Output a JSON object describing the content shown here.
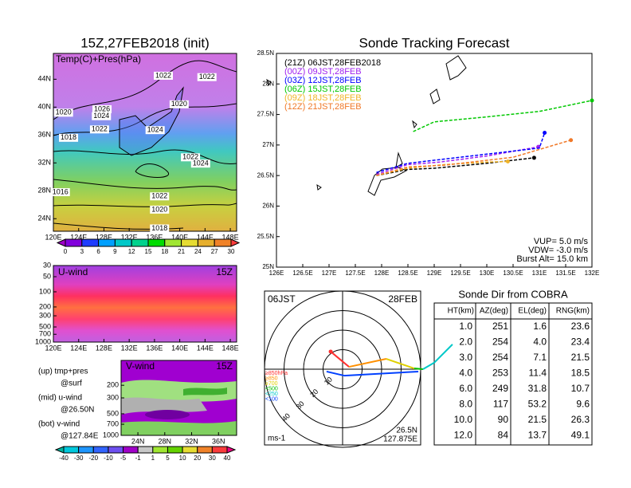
{
  "chart_data": [
    {
      "type": "contour",
      "title": "15Z,27FEB2018 (init)",
      "subtitle": "Temp(C)+Pres(hPa)",
      "xlim": [
        120,
        149
      ],
      "ylim": [
        22.2,
        47.7
      ],
      "xticks": [
        {
          "value": 120,
          "label": "120E"
        },
        {
          "value": 124,
          "label": "124E"
        },
        {
          "value": 128,
          "label": "128E"
        },
        {
          "value": 132,
          "label": "132E"
        },
        {
          "value": 136,
          "label": "136E"
        },
        {
          "value": 140,
          "label": "140E"
        },
        {
          "value": 144,
          "label": "144E"
        },
        {
          "value": 148,
          "label": "148E"
        }
      ],
      "yticks": [
        {
          "value": 24,
          "label": "24N"
        },
        {
          "value": 28,
          "label": "28N"
        },
        {
          "value": 32,
          "label": "32N"
        },
        {
          "value": 36,
          "label": "36N"
        },
        {
          "value": 40,
          "label": "40N"
        },
        {
          "value": 44,
          "label": "44N"
        }
      ],
      "contour_labels": [
        {
          "x": 137.4,
          "y": 44.5,
          "value": 1022
        },
        {
          "x": 144.3,
          "y": 44.3,
          "value": 1022
        },
        {
          "x": 127.7,
          "y": 39.7,
          "value": 1026
        },
        {
          "x": 127.6,
          "y": 38.7,
          "value": 1024
        },
        {
          "x": 121.6,
          "y": 39.2,
          "value": 1020
        },
        {
          "x": 139.9,
          "y": 40.4,
          "value": 1020
        },
        {
          "x": 127.3,
          "y": 36.8,
          "value": 1022
        },
        {
          "x": 136.1,
          "y": 36.7,
          "value": 1024
        },
        {
          "x": 122.4,
          "y": 35.6,
          "value": 1018
        },
        {
          "x": 141.7,
          "y": 32.8,
          "value": 1022
        },
        {
          "x": 143.3,
          "y": 31.9,
          "value": 1024
        },
        {
          "x": 136.8,
          "y": 27.2,
          "value": 1022
        },
        {
          "x": 136.8,
          "y": 25.3,
          "value": 1020
        },
        {
          "x": 121.1,
          "y": 27.8,
          "value": 1016
        },
        {
          "x": 136.8,
          "y": 22.6,
          "value": 1018
        }
      ],
      "colorbar": {
        "ticks": [
          0,
          3,
          6,
          9,
          12,
          15,
          18,
          21,
          24,
          27,
          30
        ],
        "colors": [
          "#a000c8",
          "#8200dc",
          "#1e3cff",
          "#00a0ff",
          "#00c8c8",
          "#00d28c",
          "#00dc00",
          "#a0e632",
          "#e6dc32",
          "#e6af2d",
          "#f08228",
          "#fa3c3c"
        ]
      }
    },
    {
      "type": "section",
      "label": "U-wind",
      "time": "15Z",
      "log_y": true,
      "xlim": [
        120,
        149
      ],
      "ylim": [
        1000,
        30
      ],
      "xticks": [
        {
          "value": 120,
          "label": "120E"
        },
        {
          "value": 124,
          "label": "124E"
        },
        {
          "value": 128,
          "label": "128E"
        },
        {
          "value": 132,
          "label": "132E"
        },
        {
          "value": 136,
          "label": "136E"
        },
        {
          "value": 140,
          "label": "140E"
        },
        {
          "value": 144,
          "label": "144E"
        },
        {
          "value": 148,
          "label": "148E"
        }
      ],
      "yticks": [
        30,
        50,
        100,
        200,
        300,
        500,
        700,
        1000
      ]
    },
    {
      "type": "section",
      "label": "V-wind",
      "time": "15Z",
      "log_y": true,
      "xlim": [
        21.5,
        38.7
      ],
      "ylim": [
        1000,
        90
      ],
      "xticks": [
        {
          "value": 24,
          "label": "24N"
        },
        {
          "value": 28,
          "label": "28N"
        },
        {
          "value": 32,
          "label": "32N"
        },
        {
          "value": 36,
          "label": "36N"
        }
      ],
      "yticks": [
        200,
        300,
        500,
        700,
        1000
      ],
      "notes": [
        "(up) tmp+pres",
        "@surf",
        "(mid) u-wind",
        "@26.50N",
        "(bot) v-wind",
        "@127.84E"
      ],
      "colorbar": {
        "ticks": [
          -40,
          -30,
          -20,
          -10,
          -5,
          -1,
          1,
          5,
          10,
          20,
          30,
          40
        ],
        "colors": [
          "#00b4a0",
          "#00c8dc",
          "#1e96ff",
          "#3264ff",
          "#6e50f0",
          "#a000c8",
          "#c8c8c8",
          "#a0e632",
          "#64d200",
          "#e6dc32",
          "#f08228",
          "#fa3c3c",
          "#f00082"
        ]
      }
    },
    {
      "type": "line",
      "title": "Sonde Tracking Forecast",
      "xlim": [
        126,
        132
      ],
      "ylim": [
        25,
        28.5
      ],
      "xticks": [
        {
          "value": 126,
          "label": "126E"
        },
        {
          "value": 126.5,
          "label": "126.5E"
        },
        {
          "value": 127,
          "label": "127E"
        },
        {
          "value": 127.5,
          "label": "127.5E"
        },
        {
          "value": 128,
          "label": "128E"
        },
        {
          "value": 128.5,
          "label": "128.5E"
        },
        {
          "value": 129,
          "label": "129E"
        },
        {
          "value": 129.5,
          "label": "129.5E"
        },
        {
          "value": 130,
          "label": "130E"
        },
        {
          "value": 130.5,
          "label": "130.5E"
        },
        {
          "value": 131,
          "label": "131E"
        },
        {
          "value": 131.5,
          "label": "131.5E"
        },
        {
          "value": 132,
          "label": "132E"
        }
      ],
      "yticks": [
        {
          "value": 25,
          "label": "25N"
        },
        {
          "value": 25.5,
          "label": "25.5N"
        },
        {
          "value": 26,
          "label": "26N"
        },
        {
          "value": 26.5,
          "label": "26.5N"
        },
        {
          "value": 27,
          "label": "27N"
        },
        {
          "value": 27.5,
          "label": "27.5N"
        },
        {
          "value": 28,
          "label": "28N"
        },
        {
          "value": 28.5,
          "label": "28.5N"
        }
      ],
      "series": [
        {
          "name": "(21Z) 06JST,28FEB2018",
          "color": "#000000",
          "x": [
            127.9,
            128.5,
            129.0,
            130.0,
            130.9
          ],
          "values": [
            26.5,
            26.6,
            26.62,
            26.7,
            26.79
          ]
        },
        {
          "name": "(00Z) 09JST,28FEB",
          "color": "#a020f0",
          "x": [
            127.9,
            128.5,
            129.1,
            130.0,
            130.98
          ],
          "values": [
            26.52,
            26.68,
            26.72,
            26.82,
            26.97
          ]
        },
        {
          "name": "(03Z) 12JST,28FEB",
          "color": "#0000ff",
          "x": [
            127.9,
            128.5,
            129.1,
            130.0,
            131.0,
            131.1
          ],
          "values": [
            26.55,
            26.7,
            26.76,
            26.85,
            26.95,
            27.2
          ]
        },
        {
          "name": "(06Z) 15JST,28FEB",
          "color": "#00c800",
          "x": [
            128.6,
            129.0,
            130.0,
            131.0,
            132.0
          ],
          "values": [
            27.22,
            27.38,
            27.46,
            27.55,
            27.73
          ]
        },
        {
          "name": "(09Z) 18JST,28FEB",
          "color": "#f0b428",
          "x": [
            127.9,
            128.5,
            129.2,
            130.0,
            130.4
          ],
          "values": [
            26.5,
            26.62,
            26.68,
            26.72,
            26.73
          ]
        },
        {
          "name": "(12Z) 21JST,28FEB",
          "color": "#f07828",
          "x": [
            127.9,
            128.5,
            129.2,
            130.5,
            131.6
          ],
          "values": [
            26.5,
            26.64,
            26.67,
            26.8,
            27.08
          ]
        }
      ],
      "annotations": [
        "VUP= 5.0 m/s",
        "VDW= -3.0 m/s",
        "Burst Alt= 15.0 km"
      ]
    },
    {
      "type": "polar",
      "time": "06JST",
      "date": "28FEB",
      "lat": "26.5N",
      "lon": "127.875E",
      "unit": "ms-1",
      "rlim": [
        0,
        40
      ],
      "rticks": [
        10,
        20,
        30,
        40
      ],
      "legend": [
        {
          "label": "≥850hPa",
          "color": "#ff3030"
        },
        {
          "label": "≥850",
          "color": "#ff9000"
        },
        {
          "label": "≥700",
          "color": "#e0d000"
        },
        {
          "label": "<500",
          "color": "#00c000"
        },
        {
          "label": "<250",
          "color": "#00c8c8"
        },
        {
          "label": "<100",
          "color": "#0040ff"
        }
      ],
      "series": [
        {
          "u": [
            -6.1,
            3.3,
            22.4,
            36.7,
            41.2,
            46.9,
            56.3
          ],
          "v": [
            9.0,
            1.2,
            5.3,
            0.4,
            0,
            3.3,
            12.7
          ],
          "colors": [
            "#ff3030",
            "#ff9000",
            "#e0d000",
            "#00c000",
            "#00c8c8",
            "#00c8c8"
          ]
        },
        {
          "u": [
            -8.2,
            0.8,
            38.8
          ],
          "v": [
            -1.2,
            -3.3,
            -1.2
          ],
          "colors": [
            "#0040ff",
            "#0040ff"
          ]
        }
      ]
    }
  ],
  "table": {
    "title": "Sonde Dir from COBRA",
    "header": [
      "HT(km)",
      "AZ(deg)",
      "EL(deg)",
      "RNG(km)"
    ],
    "rows": [
      [
        "1.0",
        "251",
        "1.6",
        "23.6"
      ],
      [
        "2.0",
        "254",
        "4.0",
        "23.4"
      ],
      [
        "3.0",
        "254",
        "7.1",
        "21.5"
      ],
      [
        "4.0",
        "253",
        "11.4",
        "18.5"
      ],
      [
        "6.0",
        "249",
        "31.8",
        "10.7"
      ],
      [
        "8.0",
        "117",
        "53.2",
        "9.6"
      ],
      [
        "10.0",
        "90",
        "21.5",
        "26.3"
      ],
      [
        "12.0",
        "84",
        "13.7",
        "49.1"
      ]
    ]
  }
}
